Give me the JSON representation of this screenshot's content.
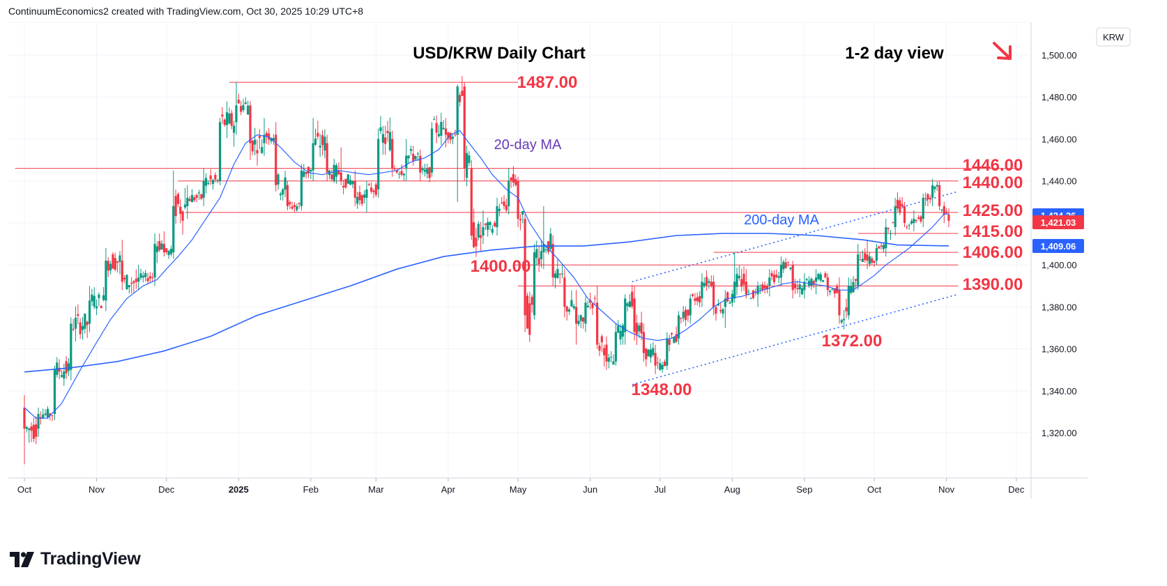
{
  "header": {
    "text": "ContinuumEconomics2 created with TradingView.com, Oct 30, 2025 10:29 UTC+8"
  },
  "footer": {
    "brand": "TradingView"
  },
  "chart_data": {
    "type": "candlestick",
    "title": "USD/KRW Daily Chart",
    "subtitle": "1-2 day view",
    "view_arrow": "down-right-arrow",
    "currency": "KRW",
    "ylim": [
      1300,
      1512
    ],
    "y_ticks": [
      1320,
      1340,
      1360,
      1380,
      1400,
      1420,
      1440,
      1460,
      1480,
      1500
    ],
    "y_tick_labels": [
      "1,320.00",
      "1,340.00",
      "1,360.00",
      "1,380.00",
      "1,400.00",
      "1,420.00",
      "1,440.00",
      "1,460.00",
      "1,480.00",
      "1,500.00"
    ],
    "x_ticks": [
      {
        "label": "Oct",
        "day": 0
      },
      {
        "label": "Nov",
        "day": 31
      },
      {
        "label": "Dec",
        "day": 61
      },
      {
        "label": "2025",
        "day": 92,
        "bold": true
      },
      {
        "label": "Feb",
        "day": 123
      },
      {
        "label": "Mar",
        "day": 151
      },
      {
        "label": "Apr",
        "day": 182
      },
      {
        "label": "May",
        "day": 212
      },
      {
        "label": "Jun",
        "day": 243
      },
      {
        "label": "Jul",
        "day": 273
      },
      {
        "label": "Aug",
        "day": 304
      },
      {
        "label": "Sep",
        "day": 335
      },
      {
        "label": "Oct",
        "day": 365
      },
      {
        "label": "Nov",
        "day": 396
      },
      {
        "label": "Dec",
        "day": 426
      }
    ],
    "price_tags": [
      {
        "label": "1,424.26",
        "value": 1424.26,
        "color": "#2962ff"
      },
      {
        "label": "1,421.03",
        "value": 1421.03,
        "color": "#f23645"
      },
      {
        "label": "1,409.06",
        "value": 1409.06,
        "color": "#2962ff"
      }
    ],
    "levels": [
      {
        "label": "1487.00",
        "value": 1487,
        "from_day": 88,
        "to_day": 212
      },
      {
        "label": "1446.00",
        "value": 1446,
        "from_day": -4,
        "to_day": 427
      },
      {
        "label": "1440.00",
        "value": 1440,
        "from_day": 66,
        "to_day": 401
      },
      {
        "label": "1425.00",
        "value": 1425,
        "from_day": 69,
        "to_day": 401
      },
      {
        "label": "1415.00",
        "value": 1415,
        "from_day": 358,
        "to_day": 401
      },
      {
        "label": "1406.00",
        "value": 1406,
        "from_day": 296,
        "to_day": 401
      },
      {
        "label": "1400.00",
        "value": 1400,
        "from_day": 210,
        "to_day": 401
      },
      {
        "label": "1390.00",
        "value": 1390,
        "from_day": 212,
        "to_day": 401
      },
      {
        "label": "1372.00",
        "value": 1372,
        "from_day": null,
        "to_day": null
      },
      {
        "label": "1348.00",
        "value": 1348,
        "from_day": null,
        "to_day": null
      }
    ],
    "annotations": [
      {
        "label": "20-day MA",
        "color": "#673ab7"
      },
      {
        "label": "200-day MA",
        "color": "#2962ff"
      }
    ],
    "trend_channel": [
      {
        "day1": 261,
        "value1": 1343,
        "day2": 401,
        "value2": 1386
      },
      {
        "day1": 261,
        "value1": 1392,
        "day2": 401,
        "value2": 1435
      }
    ],
    "ohlc_anchors": [
      [
        0,
        1332,
        1338,
        1305,
        1322
      ],
      [
        6,
        1322,
        1332,
        1318,
        1329
      ],
      [
        13,
        1329,
        1352,
        1326,
        1350
      ],
      [
        20,
        1350,
        1375,
        1345,
        1372
      ],
      [
        28,
        1372,
        1390,
        1368,
        1383
      ],
      [
        35,
        1383,
        1408,
        1378,
        1402
      ],
      [
        42,
        1402,
        1412,
        1388,
        1392
      ],
      [
        49,
        1392,
        1400,
        1388,
        1394
      ],
      [
        56,
        1394,
        1415,
        1390,
        1410
      ],
      [
        60,
        1410,
        1416,
        1404,
        1406
      ],
      [
        64,
        1406,
        1445,
        1403,
        1428
      ],
      [
        70,
        1428,
        1438,
        1422,
        1432
      ],
      [
        77,
        1432,
        1446,
        1428,
        1440
      ],
      [
        84,
        1440,
        1470,
        1438,
        1468
      ],
      [
        91,
        1468,
        1487,
        1462,
        1476
      ],
      [
        97,
        1476,
        1478,
        1450,
        1458
      ],
      [
        103,
        1458,
        1470,
        1452,
        1462
      ],
      [
        108,
        1462,
        1468,
        1435,
        1438
      ],
      [
        113,
        1438,
        1440,
        1426,
        1428
      ],
      [
        119,
        1428,
        1448,
        1426,
        1445
      ],
      [
        124,
        1445,
        1470,
        1440,
        1458
      ],
      [
        130,
        1458,
        1462,
        1440,
        1444
      ],
      [
        136,
        1444,
        1456,
        1438,
        1440
      ],
      [
        142,
        1440,
        1445,
        1428,
        1432
      ],
      [
        147,
        1432,
        1440,
        1425,
        1436
      ],
      [
        152,
        1436,
        1465,
        1432,
        1460
      ],
      [
        158,
        1460,
        1464,
        1442,
        1446
      ],
      [
        164,
        1446,
        1460,
        1440,
        1452
      ],
      [
        170,
        1452,
        1455,
        1440,
        1444
      ],
      [
        175,
        1444,
        1468,
        1442,
        1465
      ],
      [
        181,
        1465,
        1470,
        1456,
        1462
      ],
      [
        186,
        1462,
        1486,
        1430,
        1485
      ],
      [
        189,
        1485,
        1487,
        1440,
        1446
      ],
      [
        192,
        1446,
        1450,
        1412,
        1414
      ],
      [
        197,
        1414,
        1426,
        1410,
        1418
      ],
      [
        203,
        1418,
        1432,
        1414,
        1428
      ],
      [
        208,
        1428,
        1446,
        1424,
        1440
      ],
      [
        212,
        1440,
        1442,
        1418,
        1422
      ],
      [
        215,
        1422,
        1424,
        1368,
        1376
      ],
      [
        219,
        1376,
        1410,
        1374,
        1406
      ],
      [
        223,
        1406,
        1428,
        1398,
        1410
      ],
      [
        227,
        1410,
        1414,
        1390,
        1394
      ],
      [
        232,
        1394,
        1398,
        1375,
        1380
      ],
      [
        237,
        1380,
        1388,
        1362,
        1372
      ],
      [
        241,
        1372,
        1385,
        1368,
        1382
      ],
      [
        246,
        1382,
        1390,
        1360,
        1362
      ],
      [
        250,
        1362,
        1366,
        1350,
        1354
      ],
      [
        254,
        1354,
        1372,
        1352,
        1368
      ],
      [
        258,
        1368,
        1386,
        1362,
        1384
      ],
      [
        262,
        1384,
        1390,
        1364,
        1368
      ],
      [
        266,
        1368,
        1372,
        1354,
        1358
      ],
      [
        271,
        1358,
        1362,
        1348,
        1352
      ],
      [
        276,
        1352,
        1368,
        1350,
        1365
      ],
      [
        281,
        1365,
        1378,
        1362,
        1376
      ],
      [
        286,
        1376,
        1386,
        1372,
        1384
      ],
      [
        291,
        1384,
        1396,
        1380,
        1392
      ],
      [
        296,
        1392,
        1395,
        1376,
        1380
      ],
      [
        301,
        1380,
        1388,
        1370,
        1384
      ],
      [
        305,
        1384,
        1406,
        1382,
        1392
      ],
      [
        310,
        1392,
        1398,
        1384,
        1386
      ],
      [
        315,
        1386,
        1392,
        1380,
        1390
      ],
      [
        320,
        1390,
        1398,
        1385,
        1394
      ],
      [
        325,
        1394,
        1404,
        1390,
        1400
      ],
      [
        330,
        1400,
        1402,
        1384,
        1388
      ],
      [
        335,
        1388,
        1396,
        1384,
        1392
      ],
      [
        340,
        1392,
        1398,
        1386,
        1394
      ],
      [
        345,
        1394,
        1396,
        1385,
        1388
      ],
      [
        350,
        1388,
        1394,
        1372,
        1376
      ],
      [
        354,
        1376,
        1394,
        1374,
        1390
      ],
      [
        358,
        1390,
        1410,
        1388,
        1405
      ],
      [
        362,
        1405,
        1412,
        1398,
        1402
      ],
      [
        366,
        1402,
        1410,
        1400,
        1408
      ],
      [
        370,
        1408,
        1422,
        1404,
        1418
      ],
      [
        374,
        1418,
        1432,
        1414,
        1428
      ],
      [
        378,
        1428,
        1430,
        1418,
        1420
      ],
      [
        382,
        1420,
        1426,
        1416,
        1422
      ],
      [
        386,
        1422,
        1434,
        1418,
        1432
      ],
      [
        390,
        1432,
        1441,
        1428,
        1438
      ],
      [
        393,
        1438,
        1440,
        1426,
        1428
      ],
      [
        395,
        1428,
        1430,
        1420,
        1424
      ],
      [
        397,
        1424,
        1427,
        1418,
        1421.03
      ]
    ],
    "ma20_points": [
      [
        0,
        1332
      ],
      [
        5,
        1327
      ],
      [
        10,
        1327
      ],
      [
        16,
        1334
      ],
      [
        24,
        1350
      ],
      [
        31,
        1363
      ],
      [
        37,
        1374
      ],
      [
        44,
        1384
      ],
      [
        51,
        1390
      ],
      [
        57,
        1393
      ],
      [
        61,
        1398
      ],
      [
        66,
        1404
      ],
      [
        72,
        1412
      ],
      [
        78,
        1422
      ],
      [
        84,
        1432
      ],
      [
        90,
        1448
      ],
      [
        95,
        1458
      ],
      [
        100,
        1462
      ],
      [
        105,
        1461
      ],
      [
        110,
        1456
      ],
      [
        116,
        1449
      ],
      [
        122,
        1444
      ],
      [
        128,
        1443
      ],
      [
        135,
        1445
      ],
      [
        141,
        1444
      ],
      [
        148,
        1443
      ],
      [
        154,
        1444
      ],
      [
        160,
        1445
      ],
      [
        166,
        1449
      ],
      [
        172,
        1451
      ],
      [
        178,
        1455
      ],
      [
        183,
        1462
      ],
      [
        187,
        1464
      ],
      [
        191,
        1458
      ],
      [
        196,
        1451
      ],
      [
        201,
        1443
      ],
      [
        207,
        1436
      ],
      [
        212,
        1432
      ],
      [
        217,
        1420
      ],
      [
        223,
        1410
      ],
      [
        229,
        1403
      ],
      [
        236,
        1394
      ],
      [
        242,
        1384
      ],
      [
        248,
        1378
      ],
      [
        254,
        1372
      ],
      [
        260,
        1368
      ],
      [
        266,
        1365
      ],
      [
        272,
        1364
      ],
      [
        278,
        1365
      ],
      [
        284,
        1369
      ],
      [
        290,
        1374
      ],
      [
        296,
        1380
      ],
      [
        302,
        1384
      ],
      [
        308,
        1385
      ],
      [
        314,
        1387
      ],
      [
        320,
        1389
      ],
      [
        326,
        1391
      ],
      [
        332,
        1392
      ],
      [
        338,
        1391
      ],
      [
        344,
        1390
      ],
      [
        350,
        1388
      ],
      [
        356,
        1388
      ],
      [
        360,
        1391
      ],
      [
        365,
        1395
      ],
      [
        370,
        1400
      ],
      [
        375,
        1404
      ],
      [
        380,
        1408
      ],
      [
        385,
        1413
      ],
      [
        390,
        1418
      ],
      [
        395,
        1424.26
      ],
      [
        397,
        1424.26
      ]
    ],
    "ma200_points": [
      [
        0,
        1349
      ],
      [
        20,
        1351
      ],
      [
        40,
        1354
      ],
      [
        60,
        1359
      ],
      [
        80,
        1366
      ],
      [
        100,
        1376
      ],
      [
        120,
        1383
      ],
      [
        140,
        1390
      ],
      [
        160,
        1398
      ],
      [
        180,
        1404
      ],
      [
        200,
        1407
      ],
      [
        220,
        1409
      ],
      [
        240,
        1409
      ],
      [
        260,
        1411
      ],
      [
        280,
        1414
      ],
      [
        300,
        1415
      ],
      [
        320,
        1415
      ],
      [
        340,
        1414
      ],
      [
        360,
        1412
      ],
      [
        375,
        1409.5
      ],
      [
        397,
        1409.06
      ]
    ]
  }
}
